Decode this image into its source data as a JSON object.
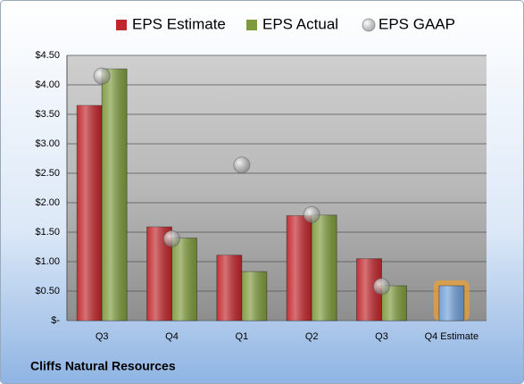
{
  "chart_data": {
    "type": "bar",
    "categories": [
      "Q3",
      "Q4",
      "Q1",
      "Q2",
      "Q3",
      "Q4 Estimate"
    ],
    "series": [
      {
        "name": "EPS Estimate",
        "color": "#c0262b",
        "values": [
          3.65,
          1.59,
          1.11,
          1.78,
          1.05,
          0.59
        ],
        "point_colors": [
          null,
          null,
          null,
          null,
          null,
          "#6f9fd8"
        ]
      },
      {
        "name": "EPS Actual",
        "color": "#7e9a3c",
        "values": [
          4.27,
          1.4,
          0.83,
          1.79,
          0.59,
          null
        ]
      },
      {
        "name": "EPS GAAP",
        "color": "#a6a6a6",
        "type": "scatter",
        "values": [
          4.15,
          1.39,
          2.64,
          1.8,
          0.58,
          null
        ]
      }
    ],
    "ylim": [
      0,
      4.5
    ],
    "yticks": [
      {
        "value": 0,
        "label": "$-"
      },
      {
        "value": 0.5,
        "label": "$0.50"
      },
      {
        "value": 1,
        "label": "$1.00"
      },
      {
        "value": 1.5,
        "label": "$1.50"
      },
      {
        "value": 2,
        "label": "$2.00"
      },
      {
        "value": 2.5,
        "label": "$2.50"
      },
      {
        "value": 3,
        "label": "$3.00"
      },
      {
        "value": 3.5,
        "label": "$3.50"
      },
      {
        "value": 4,
        "label": "$4.00"
      },
      {
        "value": 4.5,
        "label": "$4.50"
      }
    ],
    "grid": true,
    "legend": "top",
    "footer": "Cliffs Natural Resources"
  }
}
